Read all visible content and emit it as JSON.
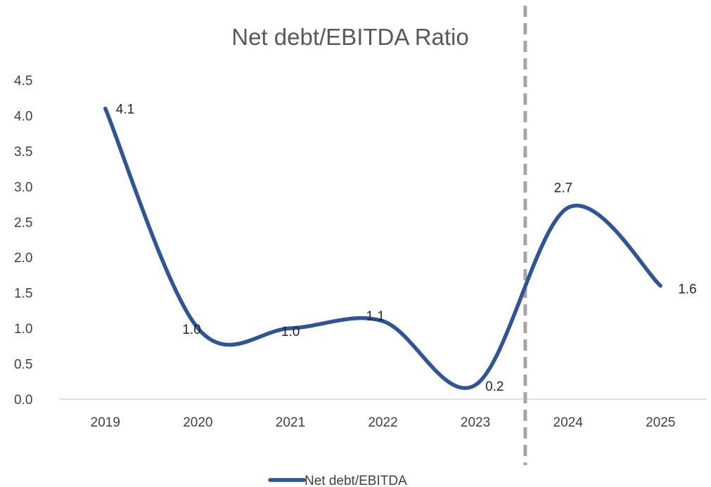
{
  "chart_data": {
    "type": "line",
    "title": "Net debt/EBITDA Ratio",
    "categories": [
      "2019",
      "2020",
      "2021",
      "2022",
      "2023",
      "2024",
      "2025"
    ],
    "series": [
      {
        "name": "Net debt/EBITDA",
        "values": [
          4.1,
          1.0,
          1.0,
          1.1,
          0.2,
          2.7,
          1.6
        ],
        "labels": [
          "4.1",
          "1.0",
          "1.0",
          "1.1",
          "0.2",
          "2.7",
          "1.6"
        ],
        "color": "#2F5597",
        "smoothed": true
      }
    ],
    "ylim": [
      0,
      4.5
    ],
    "yticks": [
      "0.0",
      "0.5",
      "1.0",
      "1.5",
      "2.0",
      "2.5",
      "3.0",
      "3.5",
      "4.0",
      "4.5"
    ],
    "grid": false,
    "divider_after_category": "2023",
    "divider_color": "#A6A6A6",
    "legend_position": "bottom"
  }
}
